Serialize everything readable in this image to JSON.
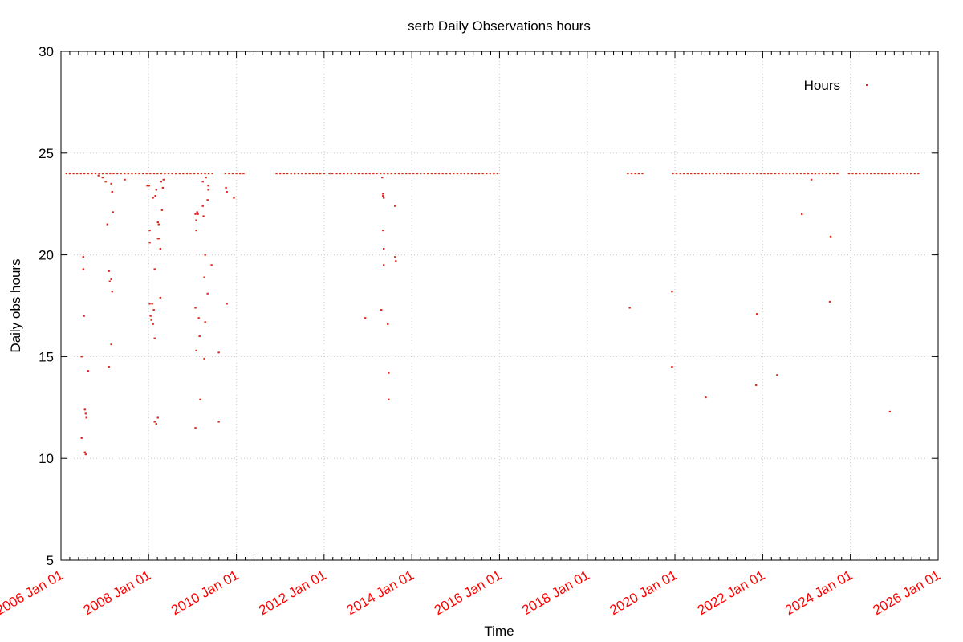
{
  "chart_data": {
    "type": "scatter",
    "title": "serb Daily Observations hours",
    "xlabel": "Time",
    "ylabel": "Daily obs hours",
    "xlim": [
      "2006-01-01",
      "2026-01-01"
    ],
    "xticks": [
      {
        "value": "2006-01-01",
        "label": "2006 Jan 01"
      },
      {
        "value": "2008-01-01",
        "label": "2008 Jan 01"
      },
      {
        "value": "2010-01-01",
        "label": "2010 Jan 01"
      },
      {
        "value": "2012-01-01",
        "label": "2012 Jan 01"
      },
      {
        "value": "2014-01-01",
        "label": "2014 Jan 01"
      },
      {
        "value": "2016-01-01",
        "label": "2016 Jan 01"
      },
      {
        "value": "2018-01-01",
        "label": "2018 Jan 01"
      },
      {
        "value": "2020-01-01",
        "label": "2020 Jan 01"
      },
      {
        "value": "2022-01-01",
        "label": "2022 Jan 01"
      },
      {
        "value": "2024-01-01",
        "label": "2024 Jan 01"
      },
      {
        "value": "2026-01-01",
        "label": "2026 Jan 01"
      }
    ],
    "ylim": [
      5,
      30
    ],
    "yticks": [
      5,
      10,
      15,
      20,
      25,
      30
    ],
    "grid": true,
    "legend": "top right",
    "series": [
      {
        "name": "Hours",
        "color": "#e0261a",
        "x": [
          "2006-02-15",
          "2006-03-15",
          "2006-04-15",
          "2006-05-15",
          "2006-06-15",
          "2006-07-15",
          "2006-08-15",
          "2006-09-15",
          "2006-10-15",
          "2006-11-15",
          "2006-12-15",
          "2007-01-15",
          "2007-02-15",
          "2007-03-15",
          "2007-04-15",
          "2007-05-15",
          "2007-06-15",
          "2007-07-15",
          "2007-08-15",
          "2007-09-15",
          "2007-10-15",
          "2007-11-15",
          "2007-12-15",
          "2008-01-15",
          "2008-02-15",
          "2008-03-15",
          "2008-04-15",
          "2008-05-15",
          "2008-06-15",
          "2008-07-15",
          "2008-08-15",
          "2008-09-15",
          "2008-10-15",
          "2008-11-15",
          "2008-12-15",
          "2009-01-15",
          "2009-02-15",
          "2009-03-15",
          "2009-04-15",
          "2009-05-15",
          "2009-06-15",
          "2009-10-01",
          "2009-11-01",
          "2009-12-01",
          "2010-01-01",
          "2010-02-01",
          "2010-03-01",
          "2010-12-01",
          "2011-01-01",
          "2011-02-01",
          "2011-03-01",
          "2011-04-01",
          "2011-05-01",
          "2011-06-01",
          "2011-07-01",
          "2011-08-01",
          "2011-09-01",
          "2011-10-01",
          "2011-11-01",
          "2011-12-01",
          "2012-01-01",
          "2012-02-15",
          "2012-03-10",
          "2012-04-15",
          "2012-05-15",
          "2012-06-15",
          "2012-07-15",
          "2012-08-15",
          "2012-09-15",
          "2012-10-15",
          "2012-11-15",
          "2012-12-15",
          "2013-01-15",
          "2013-02-15",
          "2013-03-15",
          "2013-04-15",
          "2013-05-15",
          "2013-06-15",
          "2013-07-15",
          "2013-08-15",
          "2013-09-15",
          "2013-10-15",
          "2013-11-15",
          "2013-12-15",
          "2014-01-15",
          "2014-02-15",
          "2014-03-15",
          "2014-04-15",
          "2014-05-15",
          "2014-06-15",
          "2014-07-15",
          "2014-08-15",
          "2014-09-15",
          "2014-10-15",
          "2014-11-15",
          "2014-12-15",
          "2015-01-15",
          "2015-02-15",
          "2015-03-15",
          "2015-04-15",
          "2015-05-15",
          "2015-06-15",
          "2015-07-15",
          "2015-08-15",
          "2015-09-15",
          "2015-10-15",
          "2015-11-15",
          "2015-12-15",
          "2018-12-05",
          "2019-01-05",
          "2019-02-05",
          "2019-03-05",
          "2019-04-05",
          "2019-12-15",
          "2020-01-15",
          "2020-02-15",
          "2020-03-15",
          "2020-04-15",
          "2020-05-15",
          "2020-06-15",
          "2020-07-15",
          "2020-08-15",
          "2020-09-15",
          "2020-10-15",
          "2020-11-15",
          "2020-12-15",
          "2021-01-15",
          "2021-02-15",
          "2021-03-15",
          "2021-04-15",
          "2021-05-15",
          "2021-06-15",
          "2021-07-15",
          "2021-08-15",
          "2021-09-15",
          "2021-10-15",
          "2021-11-15",
          "2021-12-15",
          "2022-01-15",
          "2022-02-15",
          "2022-03-15",
          "2022-04-15",
          "2022-05-15",
          "2022-06-15",
          "2022-07-15",
          "2022-08-15",
          "2022-09-15",
          "2022-10-15",
          "2022-11-15",
          "2022-12-15",
          "2023-01-15",
          "2023-02-15",
          "2023-03-15",
          "2023-04-15",
          "2023-05-15",
          "2023-06-15",
          "2023-07-15",
          "2023-08-15",
          "2023-09-15",
          "2023-12-20",
          "2024-01-20",
          "2024-02-20",
          "2024-03-20",
          "2024-04-20",
          "2024-05-20",
          "2024-06-20",
          "2024-07-20",
          "2024-08-20",
          "2024-09-20",
          "2024-10-20",
          "2024-11-20",
          "2024-12-20",
          "2025-01-20",
          "2025-02-20",
          "2025-03-20",
          "2025-04-20",
          "2025-05-20",
          "2025-06-20",
          "2025-07-20",
          "2006-06-22",
          "2006-06-22",
          "2006-07-06",
          "2006-07-06",
          "2006-07-12",
          "2006-07-19",
          "2006-07-26",
          "2006-08-01",
          "2006-07-19",
          "2006-07-26",
          "2006-08-15",
          "2006-11-09",
          "2006-12-13",
          "2007-01-08",
          "2007-01-22",
          "2007-02-04",
          "2007-02-11",
          "2007-02-24",
          "2007-02-24",
          "2007-02-04",
          "2007-02-24",
          "2007-03-03",
          "2007-03-10",
          "2007-03-03",
          "2007-06-17",
          "2007-12-21",
          "2008-01-04",
          "2008-01-10",
          "2008-01-10",
          "2008-01-10",
          "2008-01-17",
          "2008-01-24",
          "2008-01-30",
          "2008-02-06",
          "2008-02-13",
          "2008-02-20",
          "2008-02-20",
          "2008-02-06",
          "2008-02-26",
          "2008-03-05",
          "2008-03-18",
          "2008-03-25",
          "2008-03-18",
          "2008-04-01",
          "2008-04-08",
          "2008-04-08",
          "2008-02-20",
          "2008-03-05",
          "2008-03-18",
          "2008-04-21",
          "2008-04-28",
          "2008-04-14",
          "2008-05-04",
          "2009-01-25",
          "2009-02-01",
          "2009-02-08",
          "2009-02-01",
          "2009-01-25",
          "2009-02-01",
          "2009-02-14",
          "2009-02-21",
          "2009-02-28",
          "2009-03-06",
          "2009-03-27",
          "2009-04-02",
          "2009-04-09",
          "2009-04-16",
          "2009-04-16",
          "2009-04-09",
          "2009-05-06",
          "2009-05-06",
          "2009-05-12",
          "2009-05-12",
          "2009-06-08",
          "2009-04-22",
          "2009-03-27",
          "2009-01-25",
          "2009-08-07",
          "2009-08-07",
          "2009-10-06",
          "2009-10-13",
          "2009-10-13",
          "2009-12-11",
          "2012-12-09",
          "2013-04-22",
          "2013-05-06",
          "2013-05-06",
          "2013-05-06",
          "2013-05-12",
          "2013-05-12",
          "2013-05-12",
          "2013-06-15",
          "2013-06-22",
          "2013-06-22",
          "2013-04-29",
          "2013-08-14",
          "2013-08-14",
          "2013-08-21",
          "2018-12-20",
          "2019-12-08",
          "2019-12-08",
          "2020-09-14",
          "2021-11-07",
          "2021-11-14",
          "2022-05-01",
          "2022-11-23",
          "2023-02-11",
          "2023-07-14",
          "2023-07-21",
          "2024-11-25"
        ],
        "values": [
          24,
          24,
          24,
          24,
          24,
          24,
          24,
          24,
          24,
          24,
          24,
          24,
          24,
          24,
          24,
          24,
          24,
          24,
          24,
          24,
          24,
          24,
          24,
          24,
          24,
          24,
          24,
          24,
          24,
          24,
          24,
          24,
          24,
          24,
          24,
          24,
          24,
          24,
          24,
          24,
          24,
          24,
          24,
          24,
          24,
          24,
          24,
          24,
          24,
          24,
          24,
          24,
          24,
          24,
          24,
          24,
          24,
          24,
          24,
          24,
          24,
          24,
          24,
          24,
          24,
          24,
          24,
          24,
          24,
          24,
          24,
          24,
          24,
          24,
          24,
          24,
          24,
          24,
          24,
          24,
          24,
          24,
          24,
          24,
          24,
          24,
          24,
          24,
          24,
          24,
          24,
          24,
          24,
          24,
          24,
          24,
          24,
          24,
          24,
          24,
          24,
          24,
          24,
          24,
          24,
          24,
          24,
          24,
          24,
          24,
          24,
          24,
          24,
          24,
          24,
          24,
          24,
          24,
          24,
          24,
          24,
          24,
          24,
          24,
          24,
          24,
          24,
          24,
          24,
          24,
          24,
          24,
          24,
          24,
          24,
          24,
          24,
          24,
          24,
          24,
          24,
          24,
          24,
          24,
          24,
          24,
          24,
          24,
          24,
          24,
          24,
          24,
          24,
          24,
          24,
          24,
          24,
          24,
          24,
          24,
          24,
          24,
          24,
          24,
          24,
          24,
          24,
          24,
          24,
          24,
          24,
          24,
          24,
          24,
          24,
          24,
          24,
          24,
          24,
          15.0,
          11.0,
          19.9,
          19.3,
          17.0,
          12.4,
          12.2,
          12.0,
          10.3,
          10.2,
          14.3,
          23.9,
          23.8,
          23.6,
          21.5,
          19.2,
          18.7,
          18.8,
          15.6,
          14.5,
          23.5,
          23.1,
          22.1,
          18.2,
          23.7,
          23.4,
          23.4,
          21.2,
          20.6,
          17.6,
          17.0,
          16.8,
          17.6,
          16.6,
          17.3,
          15.9,
          19.3,
          22.8,
          22.9,
          23.2,
          21.6,
          21.5,
          20.8,
          20.8,
          20.3,
          17.9,
          11.8,
          11.7,
          12.0,
          22.2,
          23.3,
          23.6,
          23.7,
          22.0,
          21.7,
          22.1,
          21.2,
          17.4,
          15.3,
          22.0,
          16.9,
          16.0,
          12.9,
          23.6,
          21.9,
          18.9,
          20.0,
          16.7,
          14.9,
          18.1,
          22.7,
          23.2,
          23.4,
          19.5,
          23.8,
          22.4,
          11.5,
          15.2,
          11.8,
          23.3,
          23.1,
          17.6,
          22.8,
          16.9,
          17.3,
          21.2,
          22.9,
          23.0,
          22.8,
          20.3,
          19.5,
          16.6,
          14.2,
          12.9,
          23.8,
          22.4,
          19.9,
          19.7,
          17.4,
          18.2,
          14.5,
          13.0,
          13.6,
          17.1,
          14.1,
          22.0,
          23.7,
          17.7,
          20.9,
          12.3
        ]
      }
    ]
  }
}
